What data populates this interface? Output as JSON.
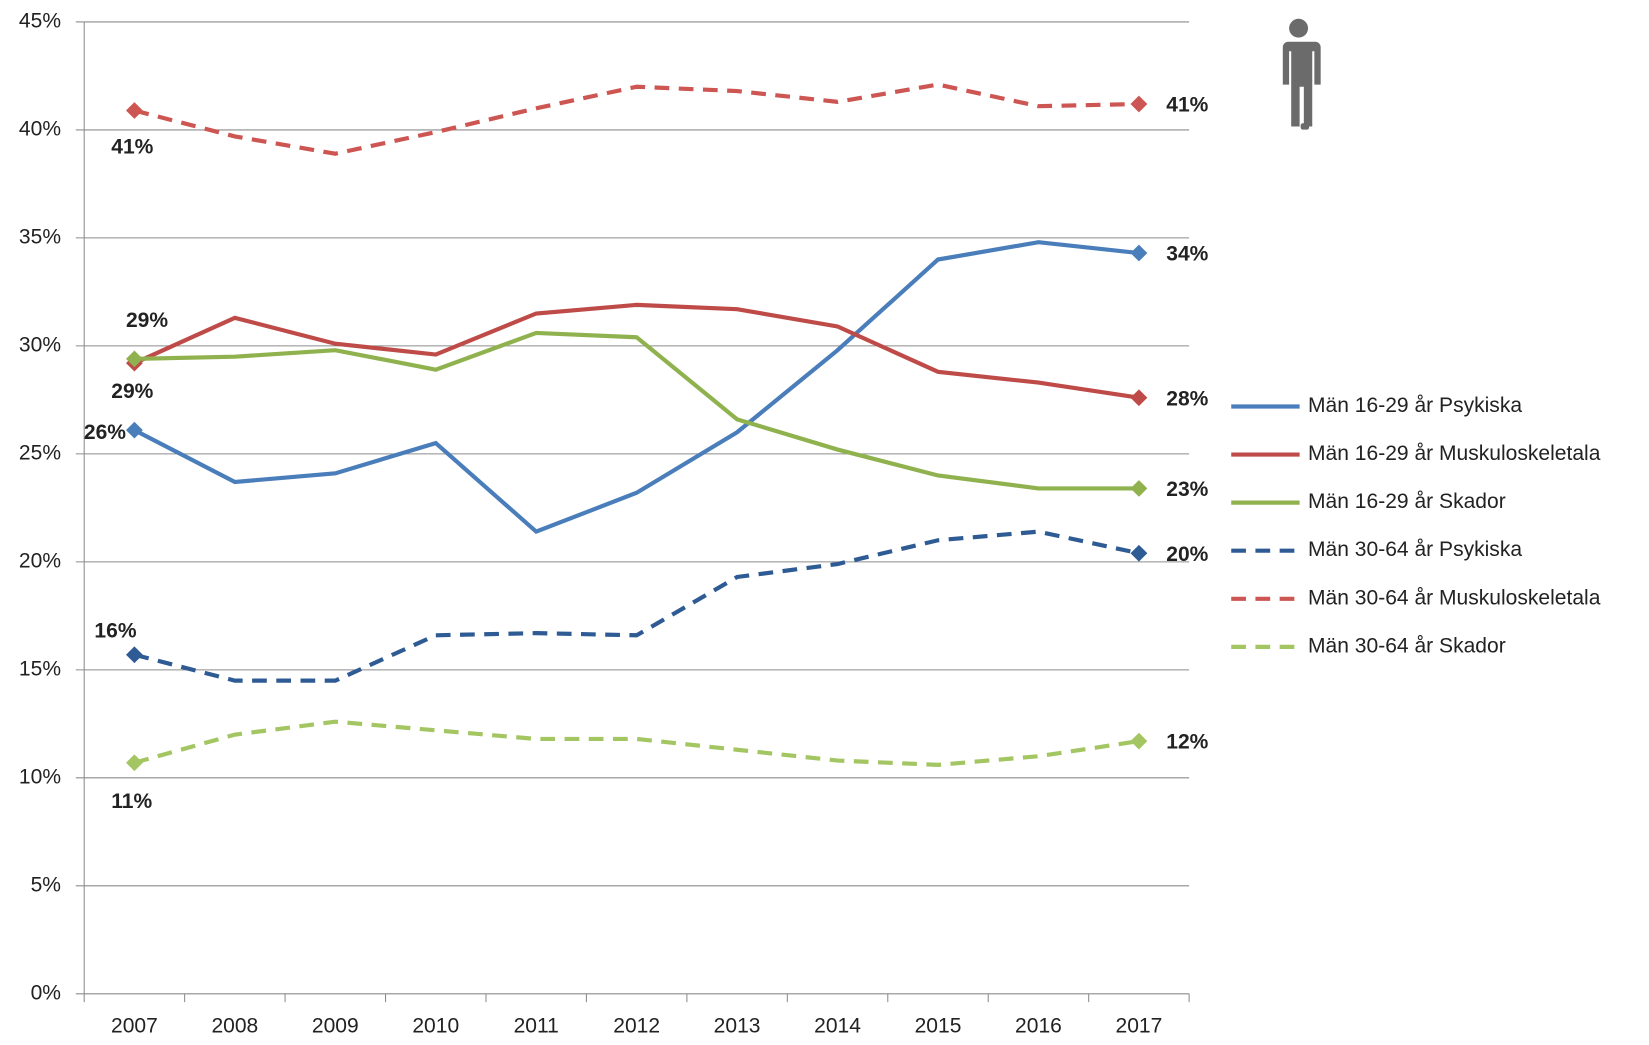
{
  "chart_data": {
    "type": "line",
    "categories": [
      "2007",
      "2008",
      "2009",
      "2010",
      "2011",
      "2012",
      "2013",
      "2014",
      "2015",
      "2016",
      "2017"
    ],
    "ylim": [
      0,
      45
    ],
    "yticks": [
      {
        "value": 0,
        "label": "0%"
      },
      {
        "value": 5,
        "label": "5%"
      },
      {
        "value": 10,
        "label": "10%"
      },
      {
        "value": 15,
        "label": "15%"
      },
      {
        "value": 20,
        "label": "20%"
      },
      {
        "value": 25,
        "label": "25%"
      },
      {
        "value": 30,
        "label": "30%"
      },
      {
        "value": 35,
        "label": "35%"
      },
      {
        "value": 40,
        "label": "40%"
      },
      {
        "value": 45,
        "label": "45%"
      }
    ],
    "grid": true,
    "legend": "right",
    "series": [
      {
        "name": "Män 16-29 år Psykiska",
        "color": "#4a7ebb",
        "dash": false,
        "values": [
          26.1,
          23.7,
          24.1,
          25.5,
          21.4,
          23.2,
          26.0,
          29.8,
          34.0,
          34.8,
          34.3
        ],
        "value_labels": [
          "26%",
          null,
          null,
          null,
          null,
          null,
          null,
          null,
          null,
          null,
          "34%"
        ]
      },
      {
        "name": "Män 16-29 år Muskuloskeletala",
        "color": "#be4b48",
        "dash": false,
        "values": [
          29.2,
          31.3,
          30.1,
          29.6,
          31.5,
          31.9,
          31.7,
          30.9,
          28.8,
          28.3,
          27.6
        ],
        "value_labels": [
          "29%",
          null,
          null,
          null,
          null,
          null,
          null,
          null,
          null,
          null,
          "28%"
        ]
      },
      {
        "name": "Män 16-29 år Skador",
        "color": "#8fb24f",
        "dash": false,
        "values": [
          29.4,
          29.5,
          29.8,
          28.9,
          30.6,
          30.4,
          26.6,
          25.2,
          24.0,
          23.4,
          23.4
        ],
        "value_labels": [
          "29%",
          null,
          null,
          null,
          null,
          null,
          null,
          null,
          null,
          null,
          "23%"
        ]
      },
      {
        "name": "Män 30-64 år Psykiska",
        "color": "#2f5b94",
        "dash": true,
        "values": [
          15.7,
          14.5,
          14.5,
          16.6,
          16.7,
          16.6,
          19.3,
          19.9,
          21.0,
          21.4,
          20.4
        ],
        "value_labels": [
          "16%",
          null,
          null,
          null,
          null,
          null,
          null,
          null,
          null,
          null,
          "20%"
        ]
      },
      {
        "name": "Män 30-64 år Muskuloskeletala",
        "color": "#cd5552",
        "dash": true,
        "values": [
          40.9,
          39.7,
          38.9,
          39.9,
          41.0,
          42.0,
          41.8,
          41.3,
          42.1,
          41.1,
          41.2
        ],
        "value_labels": [
          "41%",
          null,
          null,
          null,
          null,
          null,
          null,
          null,
          null,
          null,
          "41%"
        ]
      },
      {
        "name": "Män 30-64 år Skador",
        "color": "#a3c663",
        "dash": true,
        "values": [
          10.7,
          12.0,
          12.6,
          12.2,
          11.8,
          11.8,
          11.3,
          10.8,
          10.6,
          11.0,
          11.7
        ],
        "value_labels": [
          "11%",
          null,
          null,
          null,
          null,
          null,
          null,
          null,
          null,
          null,
          "12%"
        ]
      }
    ]
  }
}
